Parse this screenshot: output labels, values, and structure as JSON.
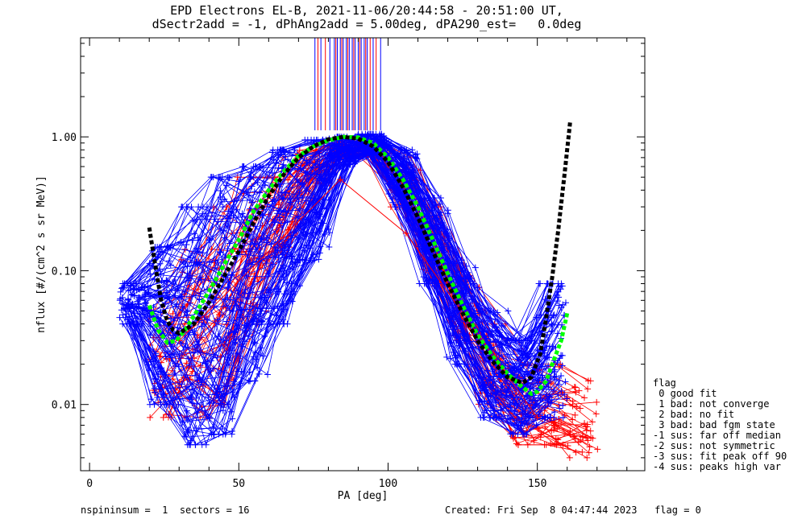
{
  "title_line1": "EPD Electrons EL-B, 2021-11-06/20:44:58 - 20:51:00 UT,",
  "title_line2": "dSectr2add = -1, dPhAng2add = 5.00deg, dPA290_est=   0.0deg",
  "legend": {
    "heading": "flag",
    "items": [
      " 0 good fit",
      " 1 bad: not converge",
      " 2 bad: no fit",
      " 3 bad: bad fgm state",
      "-1 sus: far off median",
      "-2 sus: not symmetric",
      "-3 sus: fit peak off 90",
      "-4 sus: peaks high var"
    ]
  },
  "footer_left": "nspininsum =  1  sectors = 16",
  "footer_right": "Created: Fri Sep  8 04:47:44 2023   flag = 0",
  "colors": {
    "blue": "#0000ff",
    "red": "#ff0000",
    "green": "#00ff00",
    "black": "#000000"
  },
  "chart_data": {
    "type": "line",
    "xlabel": "PA [deg]",
    "ylabel": "nflux [#/(cm^2 s sr MeV)]",
    "xlim": [
      -3,
      186
    ],
    "ylim": [
      0.0032,
      5.5
    ],
    "ylog": true,
    "xticks": [
      0,
      50,
      100,
      150
    ],
    "xticklabels": [
      "0",
      "50",
      "100",
      "150"
    ],
    "yticks": [
      0.01,
      0.1,
      1.0
    ],
    "yticklabels": [
      "0.01",
      "0.10",
      "1.00"
    ],
    "series": [
      {
        "color": "blue",
        "description_of_style": "many spectra, plus markers",
        "envelope_x": [
          15,
          25,
          35,
          45,
          55,
          65,
          75,
          85,
          95,
          105,
          115,
          125,
          135,
          145,
          155
        ],
        "envelope_low": [
          0.04,
          0.01,
          0.005,
          0.006,
          0.015,
          0.04,
          0.12,
          0.6,
          0.75,
          0.3,
          0.08,
          0.02,
          0.008,
          0.006,
          0.008
        ],
        "envelope_high": [
          0.08,
          0.15,
          0.3,
          0.5,
          0.6,
          0.8,
          0.95,
          1.0,
          1.05,
          0.8,
          0.35,
          0.12,
          0.05,
          0.03,
          0.08
        ],
        "vertical_lines_x": [
          75.5,
          77.5,
          80.5,
          82,
          83,
          84,
          85,
          86,
          87,
          88,
          89,
          90,
          91,
          92,
          93,
          95,
          97.5
        ]
      },
      {
        "color": "red",
        "description_of_style": "spectra, plus markers",
        "envelope_x": [
          25,
          35,
          45,
          55,
          65,
          75,
          85,
          95,
          105,
          115,
          125,
          135,
          145,
          155,
          165
        ],
        "envelope_low": [
          0.008,
          0.008,
          0.01,
          0.05,
          0.15,
          0.45,
          0.7,
          0.7,
          0.3,
          0.1,
          0.03,
          0.01,
          0.005,
          0.005,
          0.004
        ],
        "envelope_high": [
          0.05,
          0.15,
          0.3,
          0.5,
          0.7,
          0.85,
          0.95,
          0.95,
          0.7,
          0.3,
          0.1,
          0.04,
          0.02,
          0.02,
          0.015
        ],
        "outlier": {
          "x": [
            30,
            84,
            106,
            150
          ],
          "y": [
            0.03,
            0.48,
            0.19,
            0.008
          ]
        },
        "vertical_lines_x": [
          76.5,
          79,
          82.5,
          84.5,
          86.5,
          88.5,
          90.5,
          92.5,
          94,
          96
        ]
      },
      {
        "name": "",
        "color": "green",
        "style": "dashed fit",
        "x": [
          20,
          23,
          26,
          29,
          32,
          36,
          40,
          45,
          50,
          55,
          60,
          65,
          70,
          75,
          80,
          85,
          90,
          95,
          100,
          105,
          110,
          115,
          120,
          125,
          130,
          135,
          140,
          145,
          148,
          150,
          153,
          155,
          158,
          160
        ],
        "y": [
          0.055,
          0.036,
          0.029,
          0.03,
          0.036,
          0.05,
          0.07,
          0.11,
          0.17,
          0.28,
          0.4,
          0.55,
          0.72,
          0.85,
          0.94,
          1.0,
          0.99,
          0.9,
          0.7,
          0.48,
          0.3,
          0.17,
          0.095,
          0.055,
          0.033,
          0.023,
          0.017,
          0.0135,
          0.012,
          0.0125,
          0.015,
          0.02,
          0.03,
          0.048
        ]
      },
      {
        "name": "",
        "color": "black",
        "style": "dashed fit",
        "x": [
          20,
          22,
          24,
          26,
          28,
          30,
          35,
          40,
          45,
          50,
          55,
          60,
          65,
          70,
          75,
          80,
          85,
          90,
          95,
          100,
          105,
          110,
          115,
          120,
          125,
          130,
          135,
          140,
          145,
          148,
          151,
          153,
          155,
          157,
          159,
          161
        ],
        "y": [
          0.21,
          0.11,
          0.06,
          0.042,
          0.036,
          0.034,
          0.04,
          0.058,
          0.09,
          0.14,
          0.23,
          0.36,
          0.52,
          0.7,
          0.85,
          0.96,
          1.0,
          0.97,
          0.85,
          0.65,
          0.42,
          0.25,
          0.14,
          0.08,
          0.048,
          0.03,
          0.021,
          0.016,
          0.0145,
          0.016,
          0.024,
          0.045,
          0.09,
          0.2,
          0.5,
          1.3
        ]
      }
    ]
  }
}
